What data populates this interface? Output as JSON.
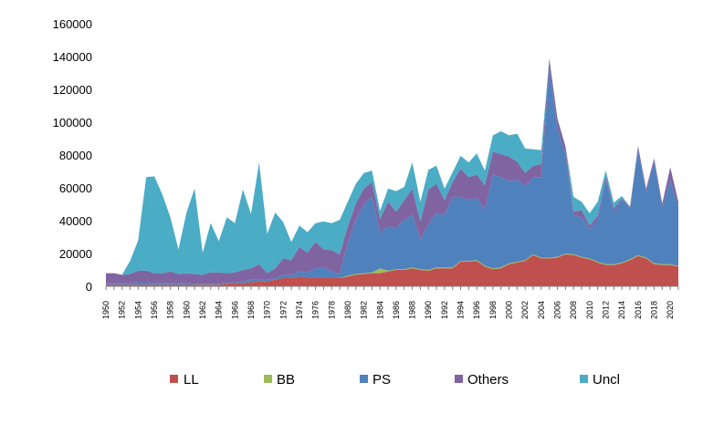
{
  "chart_data": {
    "type": "area",
    "stacked": true,
    "title": "",
    "xlabel": "",
    "ylabel": "",
    "ylim": [
      0,
      160000
    ],
    "yticks": [
      0,
      20000,
      40000,
      60000,
      80000,
      100000,
      120000,
      140000,
      160000
    ],
    "xticks": [
      1950,
      1952,
      1954,
      1956,
      1958,
      1960,
      1962,
      1964,
      1966,
      1968,
      1970,
      1972,
      1974,
      1976,
      1978,
      1980,
      1982,
      1984,
      1986,
      1988,
      1990,
      1992,
      1994,
      1996,
      1998,
      2000,
      2002,
      2004,
      2006,
      2008,
      2010,
      2012,
      2014,
      2016,
      2018,
      2020
    ],
    "legend_position": "bottom",
    "grid": false,
    "x": [
      1950,
      1951,
      1952,
      1953,
      1954,
      1955,
      1956,
      1957,
      1958,
      1959,
      1960,
      1961,
      1962,
      1963,
      1964,
      1965,
      1966,
      1967,
      1968,
      1969,
      1970,
      1971,
      1972,
      1973,
      1974,
      1975,
      1976,
      1977,
      1978,
      1979,
      1980,
      1981,
      1982,
      1983,
      1984,
      1985,
      1986,
      1987,
      1988,
      1989,
      1990,
      1991,
      1992,
      1993,
      1994,
      1995,
      1996,
      1997,
      1998,
      1999,
      2000,
      2001,
      2002,
      2003,
      2004,
      2005,
      2006,
      2007,
      2008,
      2009,
      2010,
      2011,
      2012,
      2013,
      2014,
      2015,
      2016,
      2017,
      2018,
      2019,
      2020,
      2021
    ],
    "series": [
      {
        "name": "LL",
        "color": "#c0504d",
        "values": [
          1000,
          1000,
          1000,
          1000,
          1000,
          1000,
          1000,
          1000,
          1000,
          1000,
          1000,
          1000,
          1000,
          1000,
          1000,
          1500,
          2000,
          2000,
          2500,
          3000,
          3000,
          4000,
          5000,
          5000,
          6000,
          5500,
          5500,
          5500,
          5500,
          5000,
          6000,
          7000,
          7500,
          8000,
          8000,
          9000,
          10000,
          10000,
          11000,
          10000,
          9500,
          11000,
          11000,
          11000,
          15000,
          15000,
          15500,
          12000,
          10500,
          11000,
          13500,
          14500,
          15500,
          19000,
          17000,
          17000,
          17500,
          19500,
          19000,
          17500,
          16500,
          14500,
          13000,
          13000,
          14000,
          16000,
          18500,
          17000,
          13500,
          13000,
          13000,
          12000
        ]
      },
      {
        "name": "BB",
        "color": "#9bbb59",
        "values": [
          0,
          0,
          0,
          0,
          0,
          0,
          0,
          0,
          0,
          0,
          0,
          0,
          0,
          0,
          0,
          0,
          0,
          0,
          0,
          0,
          0,
          0,
          0,
          0,
          0,
          0,
          0,
          0,
          0,
          0,
          500,
          500,
          500,
          500,
          3000,
          500,
          500,
          500,
          500,
          500,
          500,
          500,
          500,
          500,
          500,
          500,
          500,
          500,
          500,
          500,
          500,
          500,
          500,
          500,
          500,
          500,
          500,
          500,
          500,
          500,
          500,
          500,
          500,
          500,
          500,
          500,
          500,
          500,
          500,
          500,
          500,
          500
        ]
      },
      {
        "name": "PS",
        "color": "#4f81bd",
        "values": [
          1000,
          1000,
          1000,
          1000,
          1500,
          1500,
          1000,
          1000,
          1000,
          1000,
          1000,
          500,
          500,
          500,
          500,
          500,
          500,
          1000,
          1500,
          1500,
          1000,
          1000,
          2000,
          2000,
          3000,
          3000,
          5500,
          6000,
          3500,
          2500,
          20000,
          33000,
          42000,
          46000,
          22000,
          27000,
          25000,
          30000,
          32000,
          18000,
          28000,
          33000,
          32000,
          43000,
          39000,
          37000,
          38000,
          34000,
          57000,
          55000,
          50000,
          50000,
          45000,
          47000,
          49000,
          115000,
          78000,
          60000,
          24000,
          24000,
          18000,
          25000,
          52000,
          32000,
          38000,
          31000,
          64000,
          40000,
          62000,
          35000,
          51000,
          36000
        ]
      },
      {
        "name": "Others",
        "color": "#8064a2",
        "values": [
          6000,
          6000,
          5000,
          5500,
          7000,
          7000,
          6000,
          6000,
          7000,
          5500,
          6000,
          6000,
          5500,
          7000,
          7000,
          6000,
          6000,
          7000,
          7000,
          9000,
          4000,
          6000,
          10000,
          9000,
          15000,
          12000,
          16000,
          11000,
          13000,
          12000,
          10000,
          10000,
          9500,
          9000,
          8000,
          15000,
          10000,
          12000,
          16000,
          11000,
          21000,
          18000,
          9000,
          9000,
          17000,
          14000,
          14000,
          15000,
          14000,
          14000,
          15000,
          11000,
          8000,
          7000,
          8000,
          6000,
          6000,
          5000,
          2000,
          4500,
          2000,
          3000,
          2000,
          2000,
          1000,
          1000,
          2500,
          2000,
          2000,
          2000,
          8000,
          3000
        ]
      },
      {
        "name": "Uncl",
        "color": "#4bacc6",
        "values": [
          0,
          0,
          0,
          8000,
          18500,
          57000,
          59000,
          48000,
          33000,
          15000,
          37000,
          52000,
          13500,
          30000,
          19000,
          34000,
          30000,
          49000,
          33000,
          62000,
          24000,
          34000,
          22000,
          11000,
          13000,
          12500,
          11500,
          17000,
          16500,
          21000,
          15000,
          12000,
          9500,
          7000,
          5000,
          8000,
          12500,
          8000,
          16000,
          12000,
          12000,
          11000,
          7000,
          6000,
          8000,
          9000,
          13000,
          9000,
          10000,
          14000,
          13000,
          17000,
          15000,
          10000,
          8500,
          500,
          500,
          500,
          9000,
          5000,
          7500,
          8500,
          3000,
          3500,
          1500,
          0,
          0,
          0,
          0,
          0,
          0,
          0
        ]
      }
    ]
  }
}
